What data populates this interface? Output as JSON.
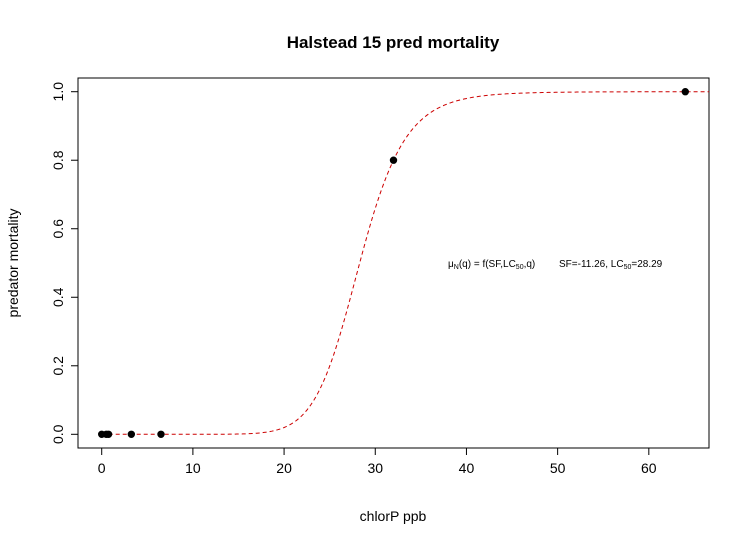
{
  "chart_data": {
    "type": "scatter",
    "title": "Halstead 15 pred mortality",
    "xlabel": "chlorP ppb",
    "ylabel": "predator mortality",
    "xlim": [
      -2.6,
      66.6
    ],
    "ylim": [
      -0.04,
      1.04
    ],
    "x_ticks": [
      0,
      10,
      20,
      30,
      40,
      50,
      60
    ],
    "y_ticks": [
      0.0,
      0.2,
      0.4,
      0.6,
      0.8,
      1.0
    ],
    "x_tick_labels": [
      "0",
      "10",
      "20",
      "30",
      "40",
      "50",
      "60"
    ],
    "y_tick_labels": [
      "0.0",
      "0.2",
      "0.4",
      "0.6",
      "0.8",
      "1.0"
    ],
    "points": {
      "x": [
        0,
        0.5,
        0.75,
        3.25,
        6.5,
        32,
        64
      ],
      "y": [
        0,
        0,
        0,
        0,
        0,
        0.8,
        1.0
      ],
      "color": "#000000"
    },
    "curve": {
      "model": "logistic",
      "SF": -11.26,
      "LC50": 28.29,
      "color": "#cc0000",
      "style": "dashed"
    },
    "annotation": {
      "mu": "μ",
      "mu_sub": "N",
      "formula_a": "(q) = f(SF,LC",
      "formula_sub": "50",
      "formula_b": ",q)",
      "params_a": "SF=-11.26, LC",
      "params_sub": "50",
      "params_b": "=28.29"
    },
    "grid": false,
    "legend": "none"
  }
}
